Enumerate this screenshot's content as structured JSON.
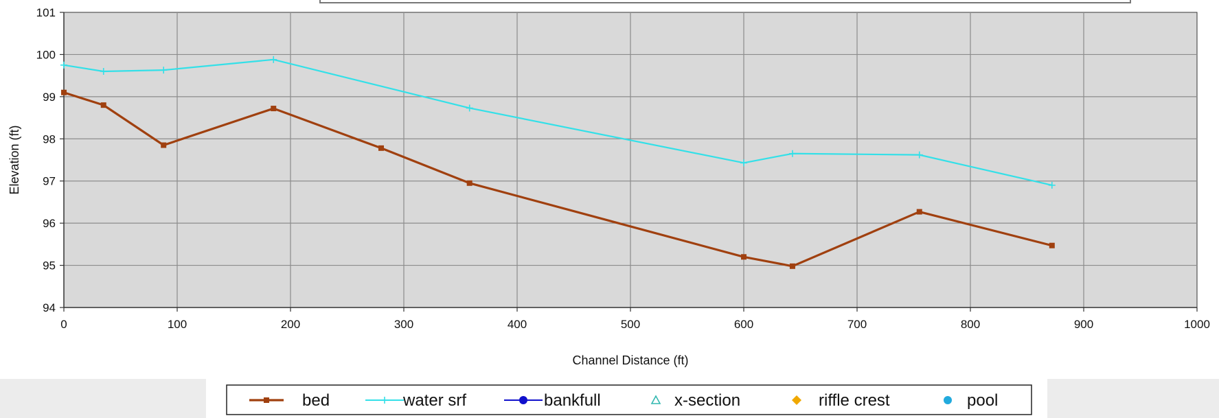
{
  "chart_data": {
    "type": "line",
    "xlabel": "Channel Distance (ft)",
    "ylabel": "Elevation (ft)",
    "xlim": [
      0,
      1000
    ],
    "ylim": [
      94,
      101
    ],
    "xticks": [
      0,
      100,
      200,
      300,
      400,
      500,
      600,
      700,
      800,
      900,
      1000
    ],
    "yticks": [
      94,
      95,
      96,
      97,
      98,
      99,
      100,
      101
    ],
    "xtick_labels": [
      "0",
      "100",
      "200",
      "300",
      "400",
      "500",
      "600",
      "700",
      "800",
      "900",
      "1000"
    ],
    "ytick_labels": [
      "94",
      "95",
      "96",
      "97",
      "98",
      "99",
      "100",
      "101"
    ],
    "grid": true,
    "legend_position": "bottom",
    "series": [
      {
        "name": "bed",
        "color": "#a0400f",
        "marker": "square",
        "x": [
          0,
          35,
          88,
          185,
          280,
          358,
          600,
          643,
          755,
          872
        ],
        "y": [
          99.1,
          98.8,
          97.85,
          98.72,
          97.78,
          96.95,
          95.2,
          94.98,
          96.27,
          95.47
        ]
      },
      {
        "name": "water srf",
        "color": "#33e0e8",
        "marker": "plus",
        "x": [
          0,
          35,
          88,
          185,
          358,
          600,
          643,
          755,
          872
        ],
        "y": [
          99.75,
          99.6,
          99.63,
          99.88,
          98.73,
          97.43,
          97.65,
          97.62,
          96.9
        ]
      },
      {
        "name": "bankfull",
        "color": "#1010cc",
        "marker": "circle",
        "x": [],
        "y": []
      },
      {
        "name": "x-section",
        "color": "#33b8b0",
        "marker": "triangle-open",
        "x": [],
        "y": []
      },
      {
        "name": "riffle crest",
        "color": "#f0a800",
        "marker": "diamond",
        "x": [],
        "y": []
      },
      {
        "name": "pool",
        "color": "#22aadd",
        "marker": "circle",
        "x": [],
        "y": []
      }
    ]
  }
}
